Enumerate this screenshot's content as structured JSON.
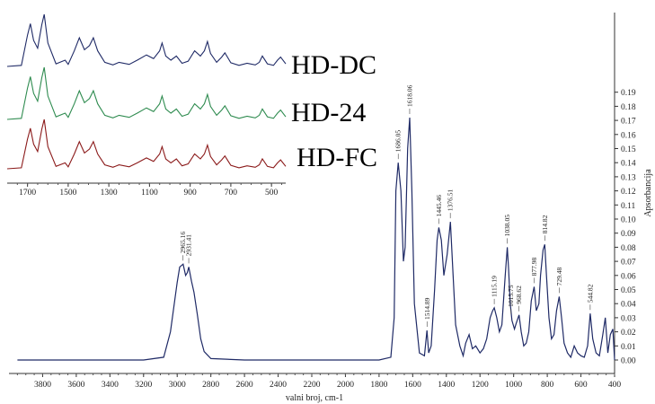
{
  "colors": {
    "main": "#1f2a66",
    "hd_dc": "#1f2a66",
    "hd_24": "#2e8b4f",
    "hd_fc": "#8b1a1a"
  },
  "chart_data": [
    {
      "type": "line",
      "title": "",
      "xlabel": "valni broj, cm-1",
      "ylabel": "Apsorbancija",
      "xlim": [
        4000,
        400
      ],
      "ylim": [
        -0.01,
        0.195
      ],
      "x_reversed": true,
      "y_axis_side": "right",
      "x_ticks": [
        3800,
        3600,
        3400,
        3200,
        3000,
        2800,
        2600,
        2400,
        2200,
        2000,
        1800,
        1600,
        1400,
        1200,
        1000,
        800,
        600,
        400
      ],
      "y_ticks": [
        "0.00",
        "0.01",
        "0.02",
        "0.03",
        "0.04",
        "0.05",
        "0.06",
        "0.07",
        "0.08",
        "0.09",
        "0.10",
        "0.11",
        "0.12",
        "0.13",
        "0.14",
        "0.15",
        "0.16",
        "0.17",
        "0.18",
        "0.19"
      ],
      "grid": false,
      "series": [
        {
          "x": [
            3950,
            3800,
            3600,
            3400,
            3200,
            3080,
            3040,
            3000,
            2985,
            2965,
            2950,
            2940,
            2931,
            2915,
            2900,
            2880,
            2860,
            2840,
            2800,
            2600,
            2400,
            2200,
            2000,
            1800,
            1730,
            1710,
            1700,
            1686,
            1670,
            1655,
            1645,
            1630,
            1618,
            1605,
            1590,
            1560,
            1530,
            1515,
            1505,
            1490,
            1470,
            1455,
            1445,
            1430,
            1415,
            1395,
            1376,
            1360,
            1345,
            1320,
            1300,
            1285,
            1265,
            1245,
            1225,
            1200,
            1180,
            1160,
            1140,
            1125,
            1115,
            1100,
            1085,
            1070,
            1050,
            1038,
            1030,
            1020,
            1010,
            995,
            985,
            968,
            955,
            940,
            925,
            910,
            895,
            878,
            865,
            850,
            840,
            825,
            815,
            805,
            790,
            775,
            760,
            745,
            729,
            715,
            700,
            680,
            660,
            640,
            620,
            600,
            580,
            560,
            545,
            530,
            510,
            490,
            470,
            455,
            440,
            425,
            410,
            400
          ],
          "y": [
            0.0,
            0.0,
            0.0,
            0.0,
            0.0,
            0.002,
            0.02,
            0.055,
            0.066,
            0.068,
            0.06,
            0.062,
            0.066,
            0.056,
            0.048,
            0.032,
            0.015,
            0.006,
            0.001,
            0.0,
            0.0,
            0.0,
            0.0,
            0.0,
            0.002,
            0.03,
            0.12,
            0.14,
            0.12,
            0.07,
            0.08,
            0.15,
            0.172,
            0.12,
            0.04,
            0.005,
            0.003,
            0.021,
            0.005,
            0.01,
            0.05,
            0.085,
            0.094,
            0.085,
            0.06,
            0.075,
            0.098,
            0.06,
            0.025,
            0.01,
            0.003,
            0.012,
            0.018,
            0.008,
            0.01,
            0.005,
            0.008,
            0.015,
            0.03,
            0.035,
            0.037,
            0.03,
            0.02,
            0.025,
            0.06,
            0.08,
            0.065,
            0.04,
            0.028,
            0.022,
            0.026,
            0.032,
            0.02,
            0.01,
            0.012,
            0.02,
            0.042,
            0.052,
            0.035,
            0.04,
            0.06,
            0.078,
            0.082,
            0.06,
            0.03,
            0.015,
            0.018,
            0.035,
            0.045,
            0.03,
            0.012,
            0.005,
            0.002,
            0.01,
            0.005,
            0.003,
            0.002,
            0.01,
            0.033,
            0.015,
            0.005,
            0.003,
            0.018,
            0.03,
            0.005,
            0.018,
            0.022,
            0.0
          ]
        }
      ],
      "peak_labels": [
        {
          "x": 2965.16,
          "y": 0.068,
          "text": "2965.16"
        },
        {
          "x": 2931.41,
          "y": 0.066,
          "text": "2931.41"
        },
        {
          "x": 1686.05,
          "y": 0.14,
          "text": "1686.05"
        },
        {
          "x": 1618.06,
          "y": 0.172,
          "text": "1618.06"
        },
        {
          "x": 1514.89,
          "y": 0.021,
          "text": "1514.89"
        },
        {
          "x": 1445.46,
          "y": 0.094,
          "text": "1445.46"
        },
        {
          "x": 1376.51,
          "y": 0.098,
          "text": "1376.51"
        },
        {
          "x": 1115.19,
          "y": 0.037,
          "text": "1115.19"
        },
        {
          "x": 1038.05,
          "y": 0.08,
          "text": "1038.05"
        },
        {
          "x": 1015.75,
          "y": 0.03,
          "text": "1015.75"
        },
        {
          "x": 968.62,
          "y": 0.032,
          "text": "968.62"
        },
        {
          "x": 877.98,
          "y": 0.052,
          "text": "877.98"
        },
        {
          "x": 814.82,
          "y": 0.082,
          "text": "814.82"
        },
        {
          "x": 729.48,
          "y": 0.045,
          "text": "729.48"
        },
        {
          "x": 544.82,
          "y": 0.033,
          "text": "544.82"
        }
      ]
    },
    {
      "type": "line",
      "title": "",
      "xlabel": "",
      "ylabel": "",
      "xlim": [
        1800,
        430
      ],
      "x_reversed": true,
      "x_ticks": [
        1700,
        1500,
        1300,
        1100,
        900,
        700,
        500
      ],
      "grid": false,
      "series": [
        {
          "name": "HD-DC",
          "x": [
            1800,
            1730,
            1700,
            1686,
            1670,
            1650,
            1630,
            1618,
            1600,
            1560,
            1515,
            1500,
            1470,
            1445,
            1420,
            1395,
            1376,
            1355,
            1320,
            1280,
            1250,
            1200,
            1160,
            1115,
            1080,
            1050,
            1038,
            1020,
            995,
            968,
            940,
            910,
            878,
            850,
            830,
            815,
            800,
            770,
            745,
            729,
            700,
            660,
            620,
            580,
            560,
            545,
            520,
            490,
            470,
            455,
            430
          ],
          "y": [
            0.0,
            0.02,
            0.6,
            0.82,
            0.5,
            0.35,
            0.8,
            1.0,
            0.45,
            0.05,
            0.12,
            0.04,
            0.3,
            0.55,
            0.32,
            0.4,
            0.55,
            0.3,
            0.08,
            0.03,
            0.08,
            0.04,
            0.12,
            0.22,
            0.15,
            0.3,
            0.45,
            0.2,
            0.12,
            0.2,
            0.06,
            0.1,
            0.3,
            0.2,
            0.3,
            0.48,
            0.25,
            0.08,
            0.18,
            0.26,
            0.07,
            0.02,
            0.06,
            0.03,
            0.08,
            0.2,
            0.05,
            0.02,
            0.12,
            0.18,
            0.05
          ]
        },
        {
          "name": "HD-24",
          "x": [
            1800,
            1730,
            1700,
            1686,
            1670,
            1650,
            1630,
            1618,
            1600,
            1560,
            1515,
            1500,
            1470,
            1445,
            1420,
            1395,
            1376,
            1355,
            1320,
            1280,
            1250,
            1200,
            1160,
            1115,
            1080,
            1050,
            1038,
            1020,
            995,
            968,
            940,
            910,
            878,
            850,
            830,
            815,
            800,
            770,
            745,
            729,
            700,
            660,
            620,
            580,
            560,
            545,
            520,
            490,
            470,
            455,
            430
          ],
          "y": [
            0.0,
            0.02,
            0.6,
            0.82,
            0.5,
            0.35,
            0.8,
            1.0,
            0.45,
            0.05,
            0.12,
            0.04,
            0.3,
            0.55,
            0.32,
            0.4,
            0.55,
            0.3,
            0.08,
            0.03,
            0.08,
            0.04,
            0.12,
            0.22,
            0.15,
            0.3,
            0.45,
            0.2,
            0.12,
            0.2,
            0.06,
            0.1,
            0.3,
            0.2,
            0.3,
            0.48,
            0.25,
            0.08,
            0.18,
            0.26,
            0.07,
            0.02,
            0.06,
            0.03,
            0.08,
            0.2,
            0.05,
            0.02,
            0.12,
            0.18,
            0.05
          ]
        },
        {
          "name": "HD-FC",
          "x": [
            1800,
            1730,
            1700,
            1686,
            1670,
            1650,
            1630,
            1618,
            1600,
            1560,
            1515,
            1500,
            1470,
            1445,
            1420,
            1395,
            1376,
            1355,
            1320,
            1280,
            1250,
            1200,
            1160,
            1115,
            1080,
            1050,
            1038,
            1020,
            995,
            968,
            940,
            910,
            878,
            850,
            830,
            815,
            800,
            770,
            745,
            729,
            700,
            660,
            620,
            580,
            560,
            545,
            520,
            490,
            470,
            455,
            430
          ],
          "y": [
            0.0,
            0.02,
            0.6,
            0.82,
            0.5,
            0.35,
            0.8,
            1.0,
            0.45,
            0.05,
            0.12,
            0.04,
            0.3,
            0.55,
            0.32,
            0.4,
            0.55,
            0.3,
            0.08,
            0.03,
            0.08,
            0.04,
            0.12,
            0.22,
            0.15,
            0.3,
            0.45,
            0.2,
            0.12,
            0.2,
            0.06,
            0.1,
            0.3,
            0.2,
            0.3,
            0.48,
            0.25,
            0.08,
            0.18,
            0.26,
            0.07,
            0.02,
            0.06,
            0.03,
            0.08,
            0.2,
            0.05,
            0.02,
            0.12,
            0.18,
            0.05
          ]
        }
      ]
    }
  ]
}
